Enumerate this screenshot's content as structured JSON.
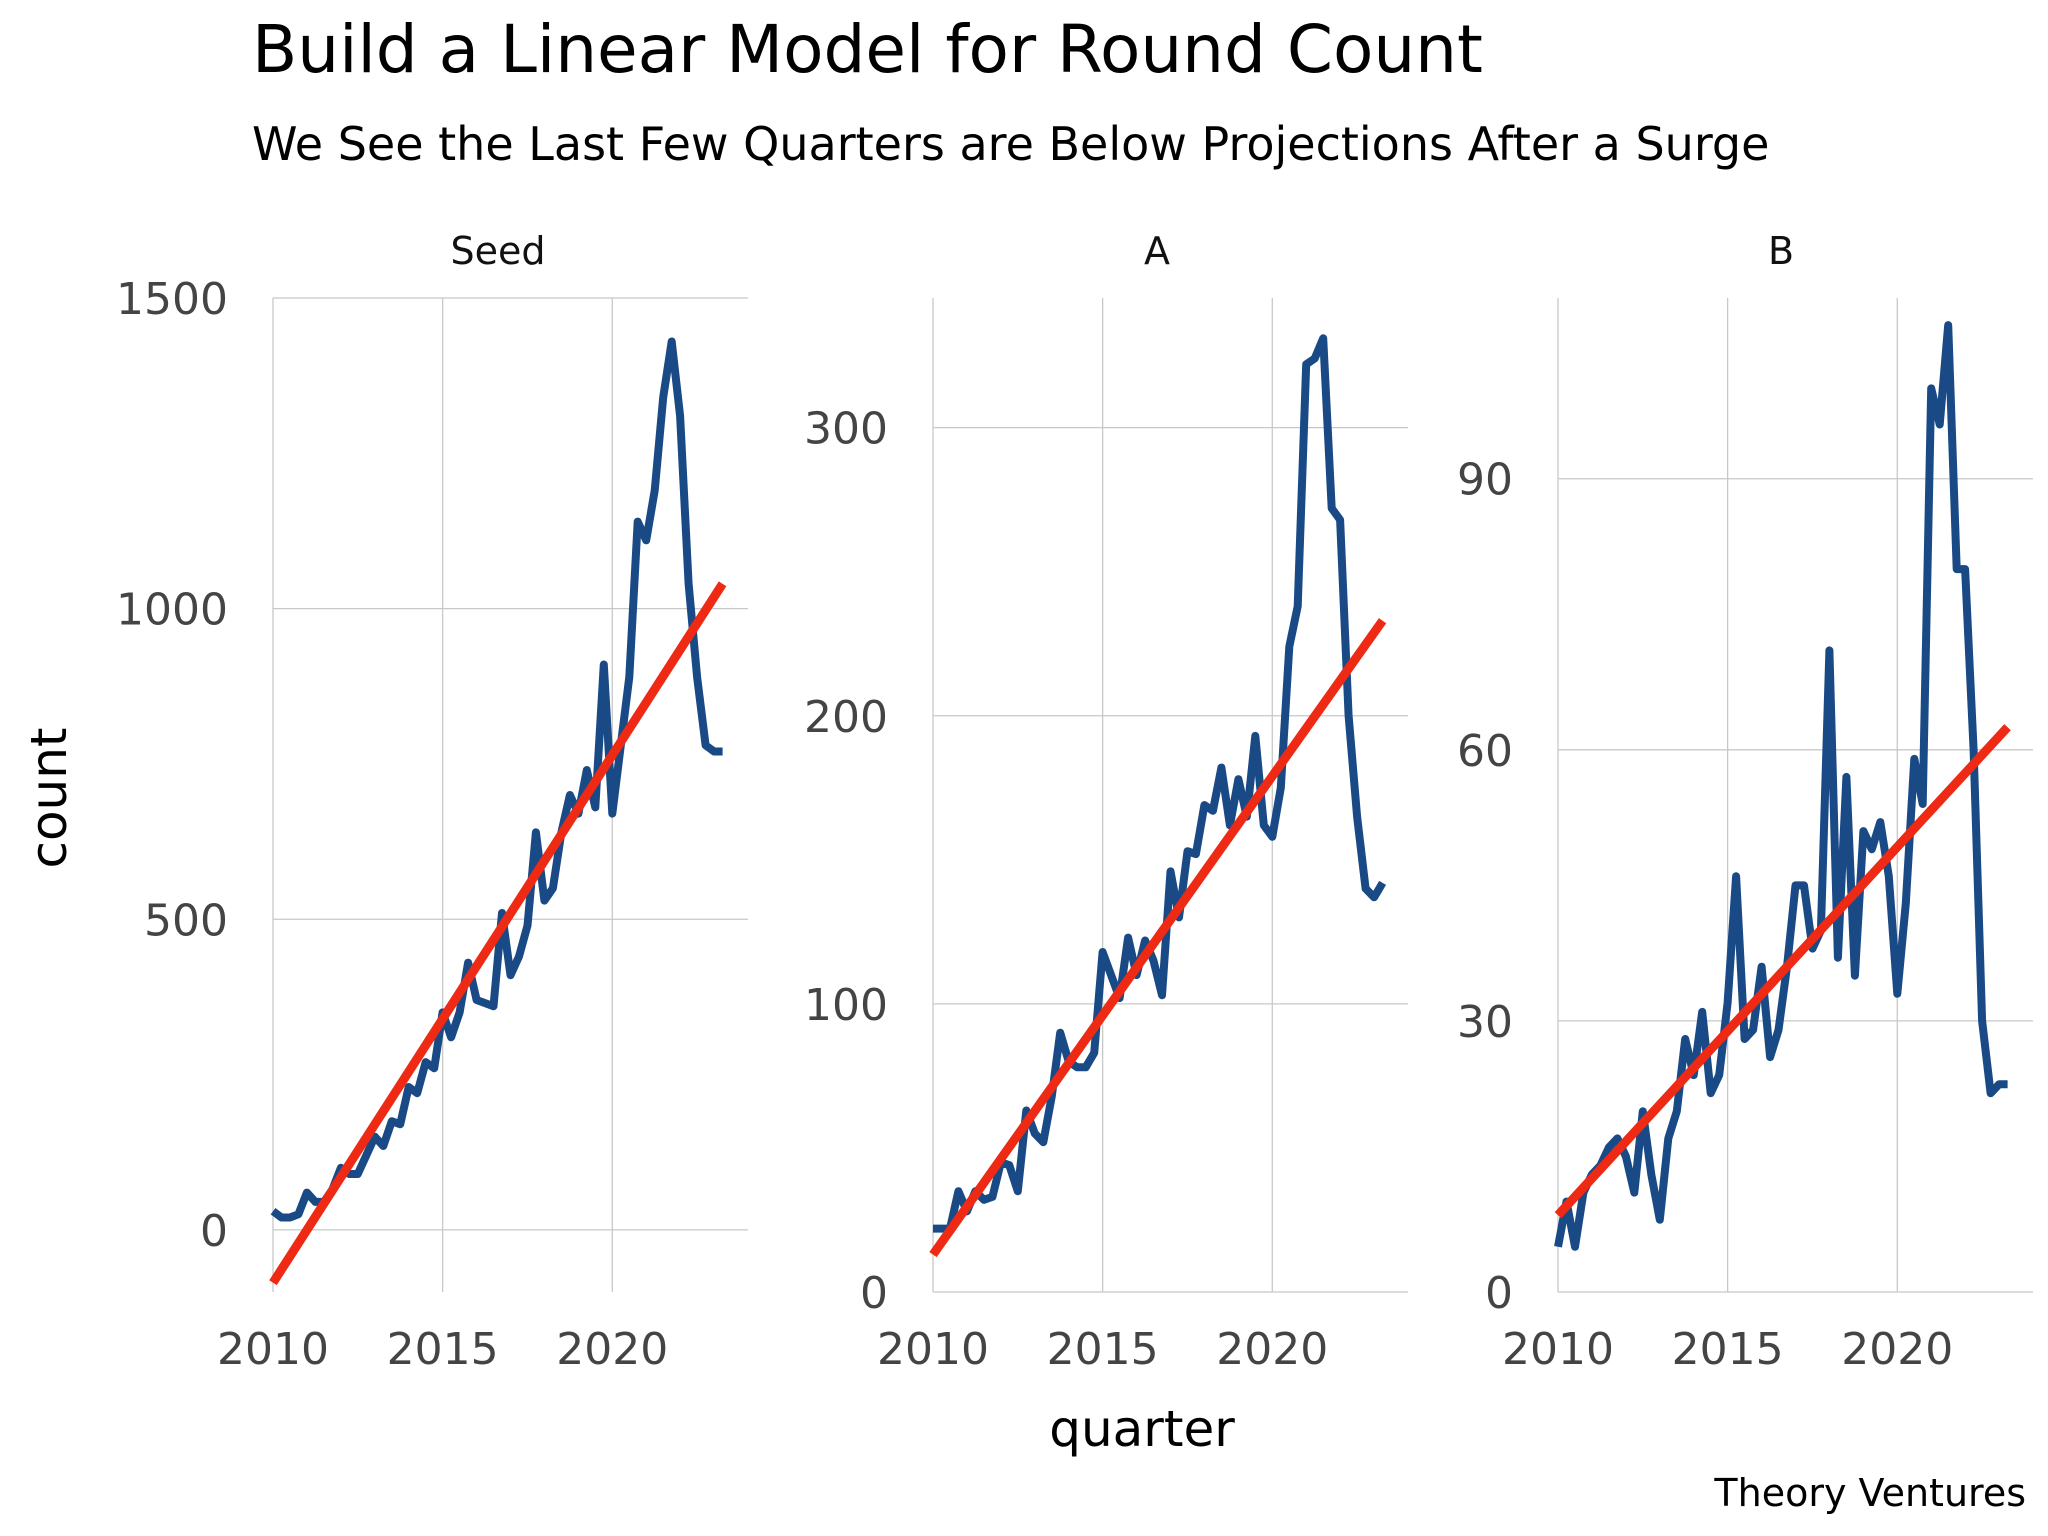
{
  "chart_data": {
    "type": "line",
    "title": "Build a Linear Model for Round Count",
    "subtitle": "We See the Last Few Quarters are Below Projections After a Surge",
    "xlabel": "quarter",
    "ylabel": "count",
    "caption": "Theory Ventures",
    "grid": true,
    "colors": {
      "actual": "#1a4a86",
      "fit": "#ee2a14"
    },
    "facets": [
      {
        "name": "Seed",
        "xlim": [
          2010,
          2024
        ],
        "ylim": [
          -100,
          1500
        ],
        "y_ticks": [
          0,
          500,
          1000,
          1500
        ],
        "x_ticks": [
          2010,
          2015,
          2020
        ],
        "fit": {
          "x": [
            2010,
            2023.25
          ],
          "y": [
            -85,
            1040
          ]
        },
        "x": [
          2010,
          2010.25,
          2010.5,
          2010.75,
          2011,
          2011.25,
          2011.5,
          2011.75,
          2012,
          2012.25,
          2012.5,
          2012.75,
          2013,
          2013.25,
          2013.5,
          2013.75,
          2014,
          2014.25,
          2014.5,
          2014.75,
          2015,
          2015.25,
          2015.5,
          2015.75,
          2016,
          2016.25,
          2016.5,
          2016.75,
          2017,
          2017.25,
          2017.5,
          2017.75,
          2018,
          2018.25,
          2018.5,
          2018.75,
          2019,
          2019.25,
          2019.5,
          2019.75,
          2020,
          2020.25,
          2020.5,
          2020.75,
          2021,
          2021.25,
          2021.5,
          2021.75,
          2022,
          2022.25,
          2022.5,
          2022.75,
          2023,
          2023.25
        ],
        "values": [
          30,
          20,
          20,
          25,
          60,
          45,
          45,
          65,
          100,
          90,
          90,
          120,
          150,
          135,
          175,
          170,
          230,
          220,
          270,
          260,
          350,
          310,
          350,
          430,
          370,
          365,
          360,
          510,
          410,
          440,
          490,
          640,
          530,
          550,
          640,
          700,
          670,
          740,
          680,
          910,
          670,
          780,
          890,
          1140,
          1110,
          1190,
          1340,
          1430,
          1310,
          1040,
          890,
          780,
          770,
          770
        ]
      },
      {
        "name": "A",
        "xlim": [
          2010,
          2024
        ],
        "ylim": [
          0,
          345
        ],
        "y_ticks": [
          0,
          100,
          200,
          300
        ],
        "x_ticks": [
          2010,
          2015,
          2020
        ],
        "fit": {
          "x": [
            2010,
            2023.25
          ],
          "y": [
            13,
            233
          ]
        },
        "x": [
          2010,
          2010.25,
          2010.5,
          2010.75,
          2011,
          2011.25,
          2011.5,
          2011.75,
          2012,
          2012.25,
          2012.5,
          2012.75,
          2013,
          2013.25,
          2013.5,
          2013.75,
          2014,
          2014.25,
          2014.5,
          2014.75,
          2015,
          2015.25,
          2015.5,
          2015.75,
          2016,
          2016.25,
          2016.5,
          2016.75,
          2017,
          2017.25,
          2017.5,
          2017.75,
          2018,
          2018.25,
          2018.5,
          2018.75,
          2019,
          2019.25,
          2019.5,
          2019.75,
          2020,
          2020.25,
          2020.5,
          2020.75,
          2021,
          2021.25,
          2021.5,
          2021.75,
          2022,
          2022.25,
          2022.5,
          2022.75,
          2023,
          2023.25
        ],
        "values": [
          22,
          22,
          22,
          35,
          28,
          35,
          32,
          33,
          45,
          44,
          35,
          63,
          55,
          52,
          68,
          90,
          80,
          78,
          78,
          83,
          118,
          110,
          102,
          123,
          110,
          122,
          115,
          103,
          146,
          130,
          153,
          152,
          169,
          167,
          182,
          162,
          178,
          165,
          193,
          162,
          158,
          175,
          224,
          238,
          322,
          324,
          331,
          272,
          268,
          200,
          165,
          140,
          137,
          142
        ]
      },
      {
        "name": "B",
        "xlim": [
          2010,
          2024
        ],
        "ylim": [
          0,
          110
        ],
        "y_ticks": [
          0,
          30,
          60,
          90
        ],
        "x_ticks": [
          2010,
          2015,
          2020
        ],
        "fit": {
          "x": [
            2010,
            2023.25
          ],
          "y": [
            8.5,
            62.5
          ]
        },
        "x": [
          2010,
          2010.25,
          2010.5,
          2010.75,
          2011,
          2011.25,
          2011.5,
          2011.75,
          2012,
          2012.25,
          2012.5,
          2012.75,
          2013,
          2013.25,
          2013.5,
          2013.75,
          2014,
          2014.25,
          2014.5,
          2014.75,
          2015,
          2015.25,
          2015.5,
          2015.75,
          2016,
          2016.25,
          2016.5,
          2016.75,
          2017,
          2017.25,
          2017.5,
          2017.75,
          2018,
          2018.25,
          2018.5,
          2018.75,
          2019,
          2019.25,
          2019.5,
          2019.75,
          2020,
          2020.25,
          2020.5,
          2020.75,
          2021,
          2021.25,
          2021.5,
          2021.75,
          2022,
          2022.25,
          2022.5,
          2022.75,
          2023,
          2023.25
        ],
        "values": [
          5,
          10,
          5,
          11,
          13,
          14,
          16,
          17,
          15,
          11,
          20,
          13,
          8,
          17,
          20,
          28,
          24,
          31,
          22,
          24,
          32,
          46,
          28,
          29,
          36,
          26,
          29,
          36,
          45,
          45,
          38,
          40,
          71,
          37,
          57,
          35,
          51,
          49,
          52,
          46,
          33,
          43,
          59,
          54,
          100,
          96,
          107,
          80,
          80,
          60,
          30,
          22,
          23,
          23
        ]
      }
    ]
  }
}
